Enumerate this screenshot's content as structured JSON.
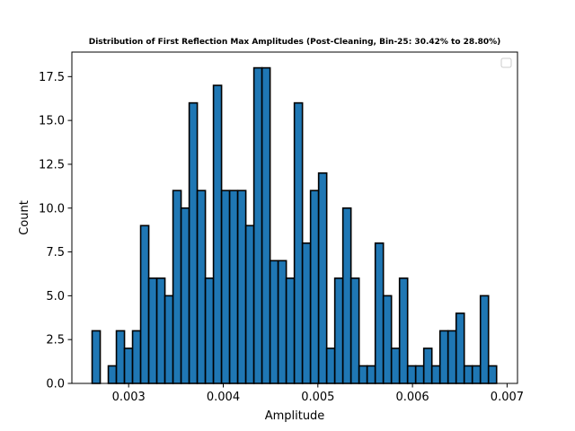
{
  "chart_data": {
    "type": "bar",
    "title": "Distribution of First Reflection Max Amplitudes (Post-Cleaning, Bin-25: 30.42% to 28.80%)",
    "xlabel": "Amplitude",
    "ylabel": "Count",
    "xlim": [
      0.0024,
      0.00711
    ],
    "ylim": [
      0,
      18.9
    ],
    "xticks": [
      0.003,
      0.004,
      0.005,
      0.006,
      0.007
    ],
    "xtick_labels": [
      "0.003",
      "0.004",
      "0.005",
      "0.006",
      "0.007"
    ],
    "yticks": [
      0.0,
      2.5,
      5.0,
      7.5,
      10.0,
      12.5,
      15.0,
      17.5
    ],
    "ytick_labels": [
      "0.0",
      "2.5",
      "5.0",
      "7.5",
      "10.0",
      "12.5",
      "15.0",
      "17.5"
    ],
    "bin_start": 0.002614,
    "bin_width": 8.55e-05,
    "values": [
      3,
      0,
      1,
      3,
      2,
      3,
      9,
      6,
      6,
      5,
      11,
      10,
      16,
      11,
      6,
      17,
      11,
      11,
      11,
      9,
      18,
      18,
      7,
      7,
      6,
      16,
      8,
      11,
      12,
      2,
      6,
      10,
      6,
      1,
      1,
      8,
      5,
      2,
      6,
      1,
      1,
      2,
      1,
      3,
      3,
      4,
      1,
      1,
      5,
      1
    ],
    "legend": {
      "placement": "upper right",
      "entries": []
    },
    "grid": false,
    "colors": {
      "bar_fill": "#1f77b4",
      "bar_edge": "#000000"
    }
  }
}
